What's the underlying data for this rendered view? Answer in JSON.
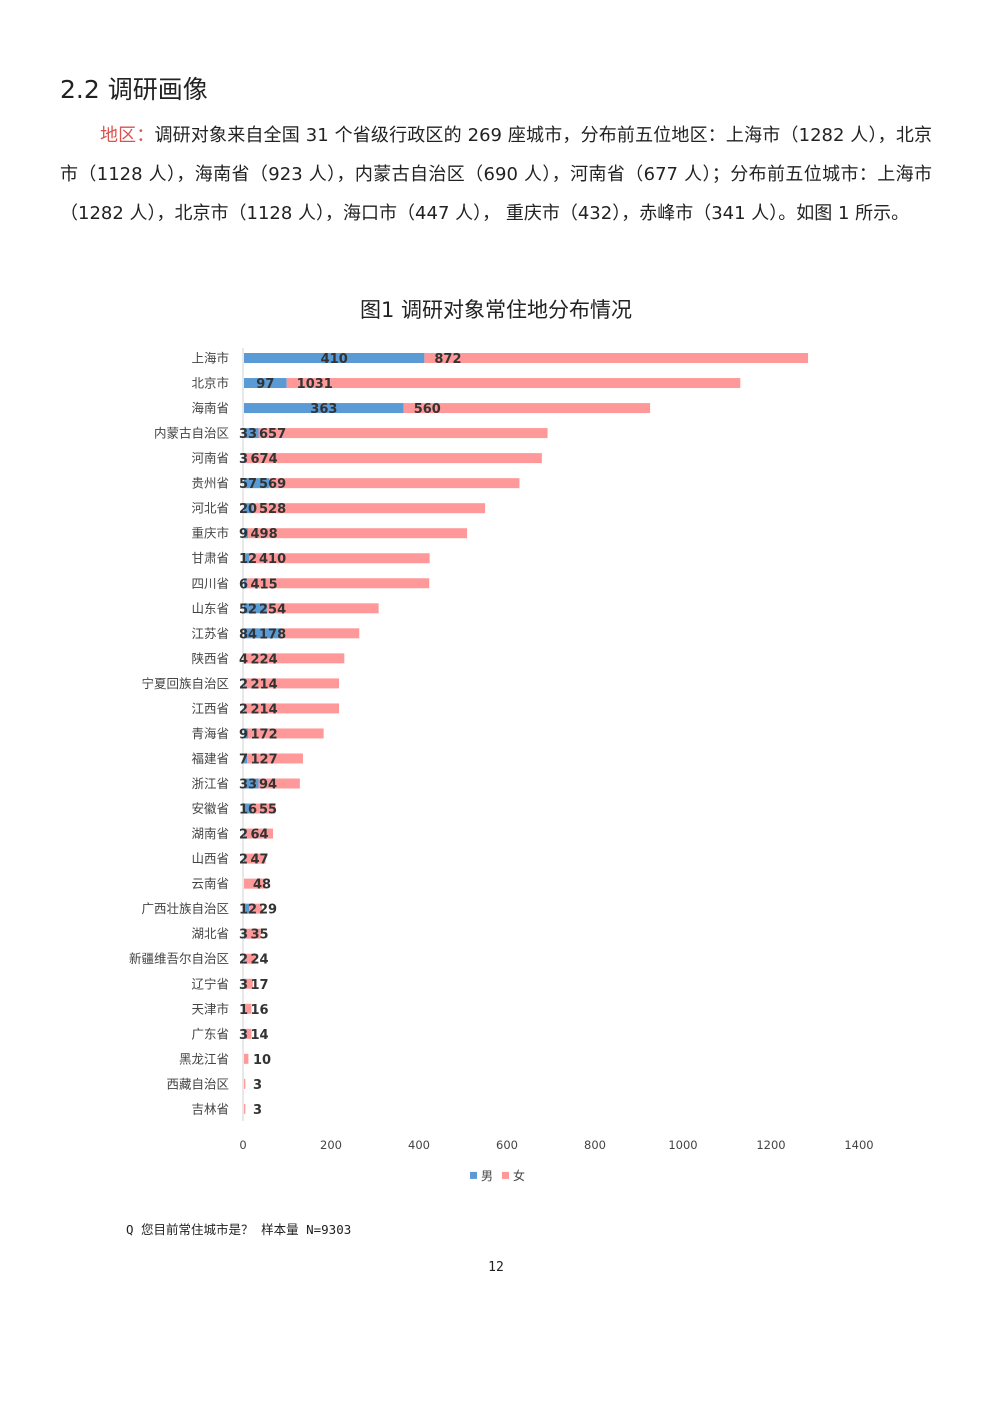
{
  "section": {
    "title": "2.2 调研画像"
  },
  "paragraph": {
    "lead": "地区：",
    "body": "调研对象来自全国 31 个省级行政区的 269 座城市，分布前五位地区：上海市（1282 人），北京市（1128 人），海南省（923 人），内蒙古自治区（690 人），河南省（677 人）；分布前五位城市：上海市（1282 人），北京市（1128 人），海口市（447 人）， 重庆市（432），赤峰市（341 人）。如图 1 所示。"
  },
  "chart_data": {
    "type": "bar",
    "orientation": "horizontal",
    "stacked": true,
    "title": "图1  调研对象常住地分布情况",
    "categories": [
      "上海市",
      "北京市",
      "海南省",
      "内蒙古自治区",
      "河南省",
      "贵州省",
      "河北省",
      "重庆市",
      "甘肃省",
      "四川省",
      "山东省",
      "江苏省",
      "陕西省",
      "宁夏回族自治区",
      "江西省",
      "青海省",
      "福建省",
      "浙江省",
      "安徽省",
      "湖南省",
      "山西省",
      "云南省",
      "广西壮族自治区",
      "湖北省",
      "新疆维吾尔自治区",
      "辽宁省",
      "天津市",
      "广东省",
      "黑龙江省",
      "西藏自治区",
      "吉林省"
    ],
    "series": [
      {
        "name": "男",
        "color": "#5b9bd5",
        "values": [
          410,
          97,
          363,
          33,
          3,
          57,
          20,
          9,
          12,
          6,
          52,
          84,
          4,
          2,
          2,
          9,
          7,
          33,
          16,
          2,
          2,
          0,
          12,
          3,
          2,
          3,
          1,
          3,
          0,
          0,
          0
        ]
      },
      {
        "name": "女",
        "color": "#ff9999",
        "values": [
          872,
          1031,
          560,
          657,
          674,
          569,
          528,
          498,
          410,
          415,
          254,
          178,
          224,
          214,
          214,
          172,
          127,
          94,
          55,
          64,
          47,
          48,
          29,
          35,
          24,
          17,
          16,
          14,
          10,
          3,
          3
        ]
      }
    ],
    "male_labels": [
      "410",
      "97",
      "363",
      "33",
      "3",
      "57",
      "20",
      "9",
      "12",
      "6",
      "52",
      "84",
      "4",
      "2",
      "2",
      "9",
      "7",
      "33",
      "16",
      "2",
      "2",
      "",
      "12",
      "3",
      "2",
      "3",
      "1",
      "3",
      "",
      "",
      ""
    ],
    "female_labels": [
      "872",
      "1031",
      "560",
      "657",
      "674",
      "569",
      "528",
      "498",
      "410",
      "415",
      "254",
      "178",
      "224",
      "214",
      "214",
      "172",
      "127",
      "94",
      "55",
      "64",
      "47",
      "48",
      "29",
      "35",
      "24",
      "17",
      "16",
      "14",
      "10",
      "3",
      "3"
    ],
    "xlim": [
      0,
      1400
    ],
    "xticks": [
      "0",
      "200",
      "400",
      "600",
      "800",
      "1000",
      "1200",
      "1400"
    ],
    "grid": false,
    "legend_position": "bottom"
  },
  "source_note": "Q 您目前常住城市是？ 样本量 N=9303",
  "page_number": "12"
}
